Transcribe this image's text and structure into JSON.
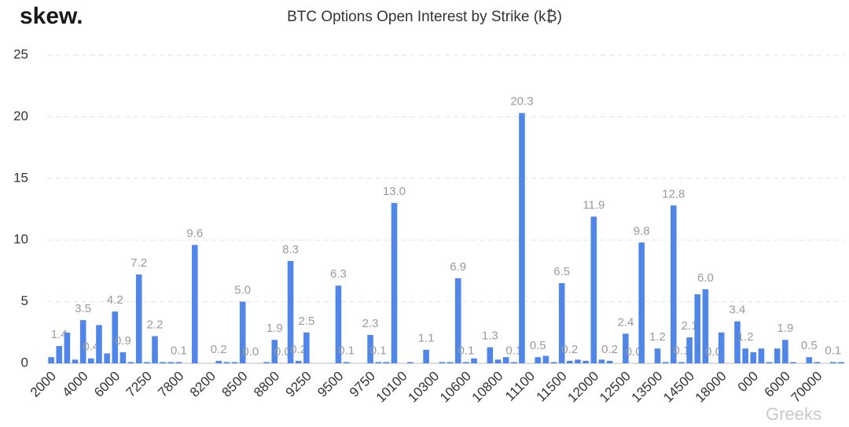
{
  "logo": "skew.",
  "watermark": "Greeks",
  "chart_data": {
    "type": "bar",
    "title": "BTC Options Open Interest by Strike (k₿)",
    "color": "#4f86e8",
    "categories": [
      "2000",
      null,
      null,
      null,
      "4000",
      null,
      null,
      null,
      "6000",
      null,
      null,
      null,
      "7250",
      null,
      null,
      null,
      "7800",
      null,
      null,
      null,
      "8200",
      null,
      null,
      null,
      "8500",
      null,
      null,
      null,
      "8800",
      null,
      null,
      null,
      "9250",
      null,
      null,
      null,
      "9500",
      null,
      null,
      null,
      "9750",
      null,
      null,
      null,
      "10100",
      null,
      null,
      null,
      "10300",
      null,
      null,
      null,
      "10600",
      null,
      null,
      null,
      "10800",
      null,
      null,
      null,
      "11100",
      null,
      null,
      null,
      "11500",
      null,
      null,
      null,
      "12000",
      null,
      null,
      null,
      "12500",
      null,
      null,
      null,
      "13500",
      null,
      null,
      null,
      "14500",
      null,
      null,
      null,
      "18000",
      null,
      null,
      null,
      "000",
      null,
      null,
      null,
      "6000",
      null,
      null,
      null,
      "70000",
      null,
      null,
      null
    ],
    "values": [
      0.5,
      1.4,
      2.5,
      0.3,
      3.5,
      0.4,
      3.1,
      0.8,
      4.2,
      0.9,
      0.1,
      7.2,
      0.1,
      2.2,
      0.1,
      0.1,
      0.1,
      0,
      9.6,
      0,
      0,
      0.2,
      0.1,
      0.1,
      5.0,
      0,
      0,
      0.1,
      1.9,
      0,
      8.3,
      0.2,
      2.5,
      0,
      0,
      0,
      6.3,
      0.1,
      0,
      0,
      2.3,
      0.1,
      0.1,
      13.0,
      0,
      0.1,
      0,
      1.1,
      0,
      0.1,
      0.1,
      6.9,
      0.1,
      0.4,
      0,
      1.3,
      0.3,
      0.5,
      0.1,
      20.3,
      0,
      0.5,
      0.6,
      0.1,
      6.5,
      0.2,
      0.3,
      0.2,
      11.9,
      0.3,
      0.2,
      0,
      2.4,
      0,
      9.8,
      0,
      1.2,
      0.1,
      12.8,
      0.1,
      2.1,
      5.6,
      6.0,
      0,
      2.5,
      0,
      3.4,
      1.2,
      0.9,
      1.2,
      0.1,
      1.2,
      1.9,
      0.1,
      0,
      0.5,
      0.1,
      0,
      0.1,
      0.1
    ],
    "value_labels": [
      null,
      "1.4",
      null,
      null,
      "3.5",
      "0.4",
      null,
      null,
      "4.2",
      "0.9",
      null,
      "7.2",
      null,
      "2.2",
      null,
      null,
      "0.1",
      null,
      "9.6",
      null,
      null,
      "0.2",
      null,
      null,
      "5.0",
      "0.0",
      null,
      null,
      "1.9",
      "0.0",
      "8.3",
      "0.2",
      "2.5",
      null,
      null,
      null,
      "6.3",
      "0.1",
      null,
      null,
      "2.3",
      "0.1",
      null,
      "13.0",
      null,
      null,
      null,
      "1.1",
      null,
      null,
      null,
      "6.9",
      "0.1",
      null,
      null,
      "1.3",
      null,
      null,
      "0.1",
      "20.3",
      null,
      "0.5",
      null,
      null,
      "6.5",
      "0.2",
      null,
      null,
      "11.9",
      null,
      "0.2",
      null,
      "2.4",
      "0.0",
      "9.8",
      null,
      "1.2",
      null,
      "12.8",
      "0.1",
      "2.1",
      null,
      "6.0",
      "0.0",
      null,
      null,
      "3.4",
      "1.2",
      null,
      null,
      null,
      null,
      "1.9",
      null,
      null,
      "0.5",
      null,
      null,
      "0.1",
      null
    ],
    "ylim": [
      0,
      25
    ],
    "yticks": [
      0,
      5,
      10,
      15,
      20,
      25
    ],
    "grid": true
  }
}
